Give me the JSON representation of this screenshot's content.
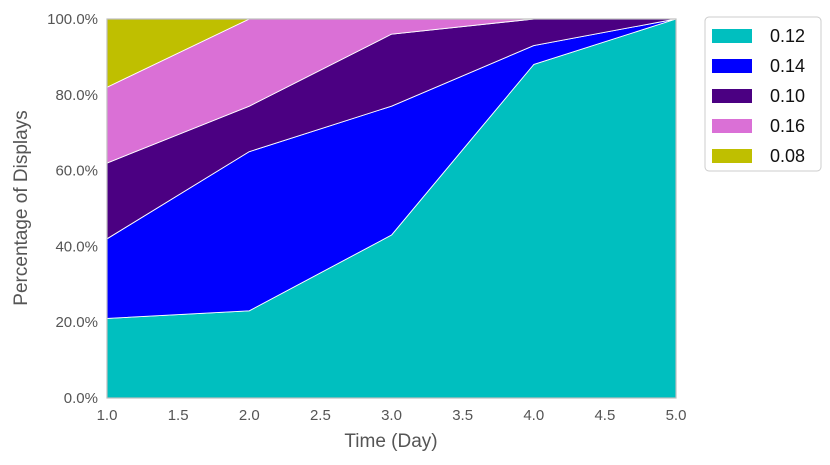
{
  "chart_data": {
    "type": "area",
    "stacked": true,
    "normalized": true,
    "xlabel": "Time (Day)",
    "ylabel": "Percentage of Displays",
    "x": [
      1.0,
      2.0,
      3.0,
      4.0,
      5.0
    ],
    "xlim": [
      1.0,
      5.0
    ],
    "ylim": [
      0,
      100
    ],
    "x_ticks": [
      "1.0",
      "1.5",
      "2.0",
      "2.5",
      "3.0",
      "3.5",
      "4.0",
      "4.5",
      "5.0"
    ],
    "y_ticks": [
      "0.0%",
      "20.0%",
      "40.0%",
      "60.0%",
      "80.0%",
      "100.0%"
    ],
    "grid": false,
    "legend_position": "outside-top-right",
    "series": [
      {
        "name": "0.12",
        "color": "#00BFBF",
        "values": [
          21,
          23,
          43,
          88,
          100
        ]
      },
      {
        "name": "0.14",
        "color": "#0000FF",
        "values": [
          21,
          42,
          34,
          5,
          0
        ]
      },
      {
        "name": "0.10",
        "color": "#4B0082",
        "values": [
          20,
          12,
          19,
          7,
          0
        ]
      },
      {
        "name": "0.16",
        "color": "#DA70D6",
        "values": [
          20,
          23,
          4,
          0,
          0
        ]
      },
      {
        "name": "0.08",
        "color": "#BFBF00",
        "values": [
          18,
          0,
          0,
          0,
          0
        ]
      }
    ]
  }
}
